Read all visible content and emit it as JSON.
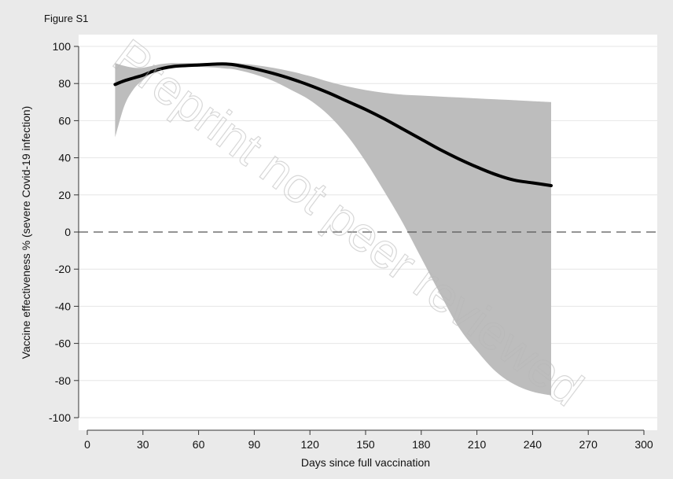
{
  "figure_label": "Figure S1",
  "watermark": "Preprint not peer reviewed",
  "chart_data": {
    "type": "line",
    "xlabel": "Days since full vaccination",
    "ylabel": "Vaccine effectiveness % (severe Covid-19 infection)",
    "xlim": [
      0,
      300
    ],
    "ylim": [
      -100,
      100
    ],
    "xticks": [
      0,
      30,
      60,
      90,
      120,
      150,
      180,
      210,
      240,
      270,
      300
    ],
    "yticks": [
      -100,
      -80,
      -60,
      -40,
      -20,
      0,
      20,
      40,
      60,
      80,
      100
    ],
    "grid": "horizontal",
    "reference_line": {
      "y": 0,
      "style": "dashed"
    },
    "series": [
      {
        "x": [
          15,
          20,
          25,
          30,
          35,
          40,
          45,
          50,
          60,
          70,
          75,
          80,
          90,
          100,
          110,
          120,
          130,
          140,
          150,
          160,
          170,
          180,
          190,
          200,
          210,
          220,
          230,
          240,
          250
        ],
        "y": [
          79.5,
          81.5,
          83,
          84.5,
          86.5,
          88,
          89,
          89.5,
          90,
          90.5,
          90.5,
          90,
          88,
          85.5,
          82.5,
          79,
          75,
          70.5,
          66,
          61,
          55.5,
          50,
          44.5,
          39.5,
          35,
          31,
          28,
          26.5,
          25
        ],
        "lower": [
          51,
          68,
          77,
          82,
          85.5,
          87.5,
          88.5,
          89,
          89,
          88.5,
          88,
          87.5,
          85,
          81.5,
          76.5,
          71,
          63,
          52,
          38,
          22,
          5,
          -14,
          -33,
          -51,
          -64,
          -75,
          -82,
          -86,
          -88
        ],
        "upper": [
          91,
          89.5,
          88.5,
          88.5,
          89.5,
          90.5,
          91,
          91,
          91,
          91,
          91,
          91,
          90,
          88.5,
          86.5,
          84,
          81,
          78.5,
          76.5,
          75,
          74,
          73.5,
          73,
          72.5,
          72,
          71.5,
          71,
          70.5,
          70
        ]
      }
    ],
    "colors": {
      "band": "#bdbdbd",
      "line": "#000000",
      "background": "#ffffff",
      "outer": "#eaeaea",
      "grid": "#e6e6e6"
    }
  }
}
